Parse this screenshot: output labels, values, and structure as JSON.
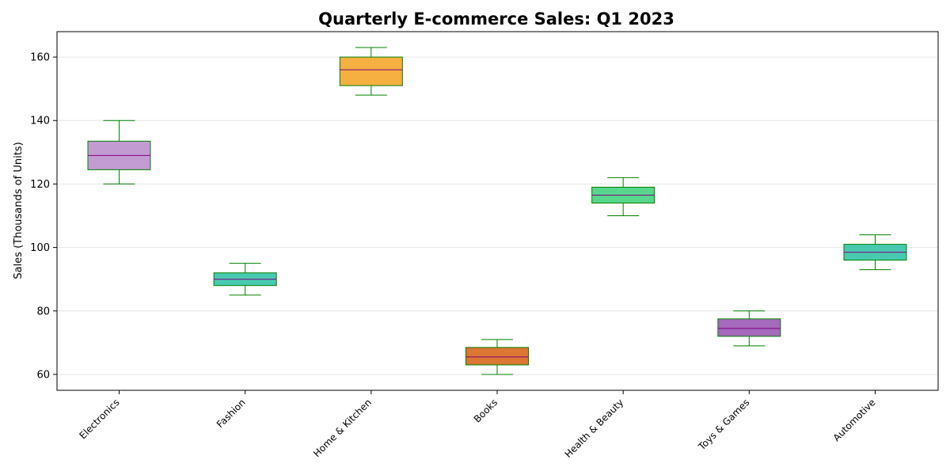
{
  "chart_data": {
    "type": "box",
    "title": "Quarterly E-commerce Sales: Q1 2023",
    "xlabel": "",
    "ylabel": "Sales (Thousands of Units)",
    "ylim": [
      55,
      168
    ],
    "yticks": [
      60,
      80,
      100,
      120,
      140,
      160
    ],
    "grid": {
      "y": true,
      "x": false
    },
    "categories": [
      "Electronics",
      "Fashion",
      "Home & Kitchen",
      "Books",
      "Health & Beauty",
      "Toys & Games",
      "Automotive"
    ],
    "boxes": [
      {
        "category": "Electronics",
        "min": 120,
        "q1": 124.5,
        "median": 129,
        "q3": 133.5,
        "max": 140,
        "color": "#c39bd3"
      },
      {
        "category": "Fashion",
        "min": 85,
        "q1": 88,
        "median": 90,
        "q3": 92,
        "max": 95,
        "color": "#48c9b0"
      },
      {
        "category": "Home & Kitchen",
        "min": 148,
        "q1": 151,
        "median": 156,
        "q3": 160,
        "max": 163,
        "color": "#f5b041"
      },
      {
        "category": "Books",
        "min": 60,
        "q1": 63,
        "median": 65.5,
        "q3": 68.5,
        "max": 71,
        "color": "#dc7633"
      },
      {
        "category": "Health & Beauty",
        "min": 110,
        "q1": 114,
        "median": 116.5,
        "q3": 119,
        "max": 122,
        "color": "#58d68d"
      },
      {
        "category": "Toys & Games",
        "min": 69,
        "q1": 72,
        "median": 74.5,
        "q3": 77.5,
        "max": 80,
        "color": "#a569bd"
      },
      {
        "category": "Automotive",
        "min": 93,
        "q1": 96,
        "median": 98.5,
        "q3": 101,
        "max": 104,
        "color": "#48c9b0"
      }
    ],
    "box_edge_color": "#008000",
    "whisker_color": "#008000",
    "median_color": "#800080"
  }
}
